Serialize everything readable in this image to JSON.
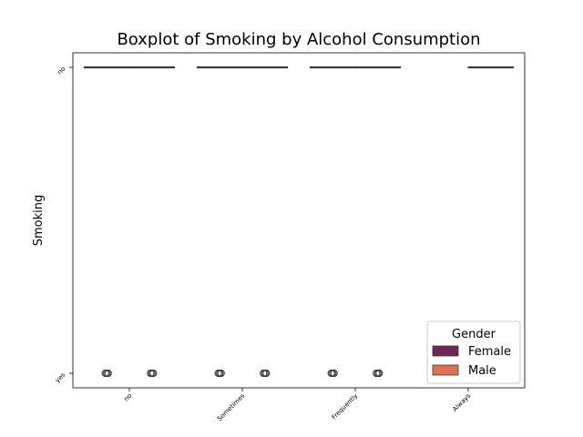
{
  "chart_data": {
    "type": "boxplot",
    "title": "Boxplot of Smoking by Alcohol Consumption",
    "xlabel": "",
    "ylabel": "Smoking",
    "categories": [
      "no",
      "Sometimes",
      "Frequently",
      "Always"
    ],
    "y_categories": [
      "no",
      "yes"
    ],
    "legend": {
      "title": "Gender",
      "placement": "lower-right",
      "entries": [
        {
          "name": "Female",
          "color": "#6e2758"
        },
        {
          "name": "Male",
          "color": "#e0704f"
        }
      ]
    },
    "series": [
      {
        "name": "Female",
        "color": "#6e2758",
        "boxes": [
          {
            "category": "no",
            "median": "no",
            "outliers": [
              "yes"
            ]
          },
          {
            "category": "Sometimes",
            "median": "no",
            "outliers": [
              "yes"
            ]
          },
          {
            "category": "Frequently",
            "median": "no",
            "outliers": [
              "yes"
            ]
          },
          null
        ]
      },
      {
        "name": "Male",
        "color": "#e0704f",
        "boxes": [
          {
            "category": "no",
            "median": "no",
            "outliers": [
              "yes"
            ]
          },
          {
            "category": "Sometimes",
            "median": "no",
            "outliers": [
              "yes"
            ]
          },
          {
            "category": "Frequently",
            "median": "no",
            "outliers": [
              "yes"
            ]
          },
          {
            "category": "Always",
            "median": "no",
            "outliers": []
          }
        ]
      }
    ],
    "grid": false
  }
}
